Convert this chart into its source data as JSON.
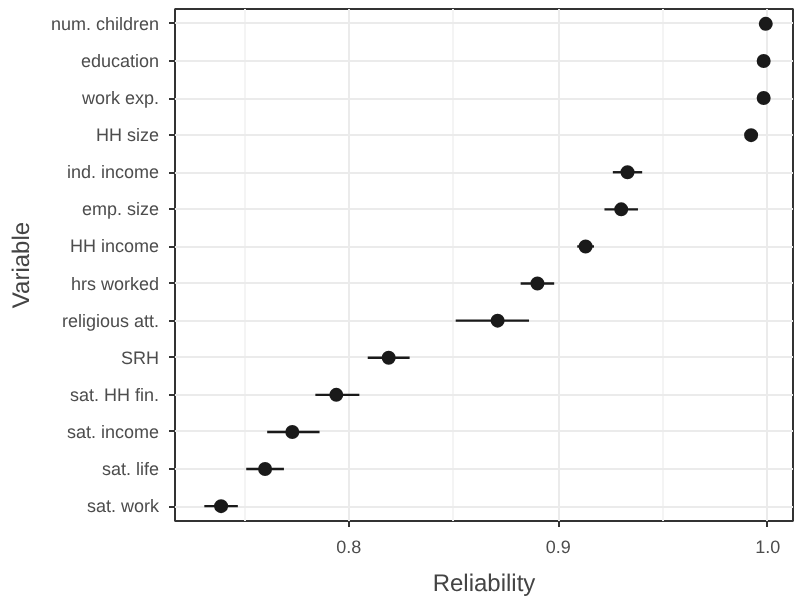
{
  "chart_data": {
    "type": "scatter",
    "orientation": "horizontal",
    "xlabel": "Reliability",
    "ylabel": "Variable",
    "categories": [
      "num. children",
      "education",
      "work exp.",
      "HH size",
      "ind. income",
      "emp. size",
      "HH income",
      "hrs worked",
      "religious att.",
      "SRH",
      "sat. HH fin.",
      "sat. income",
      "sat. life",
      "sat. work"
    ],
    "values": [
      0.999,
      0.998,
      0.998,
      0.992,
      0.933,
      0.93,
      0.913,
      0.89,
      0.871,
      0.819,
      0.794,
      0.773,
      0.76,
      0.739
    ],
    "errors": [
      null,
      null,
      null,
      null,
      0.007,
      0.008,
      0.004,
      0.008,
      [
        0.851,
        0.886
      ],
      0.01,
      [
        0.784,
        0.805
      ],
      [
        0.761,
        0.786
      ],
      0.009,
      0.008
    ],
    "color": "#1a1a1a",
    "marker": "circle",
    "xlim": [
      0.717,
      1.012
    ],
    "xticks": [
      0.8,
      0.9,
      {
        "value": 1.0,
        "label": "1.0"
      }
    ],
    "grid": true
  }
}
